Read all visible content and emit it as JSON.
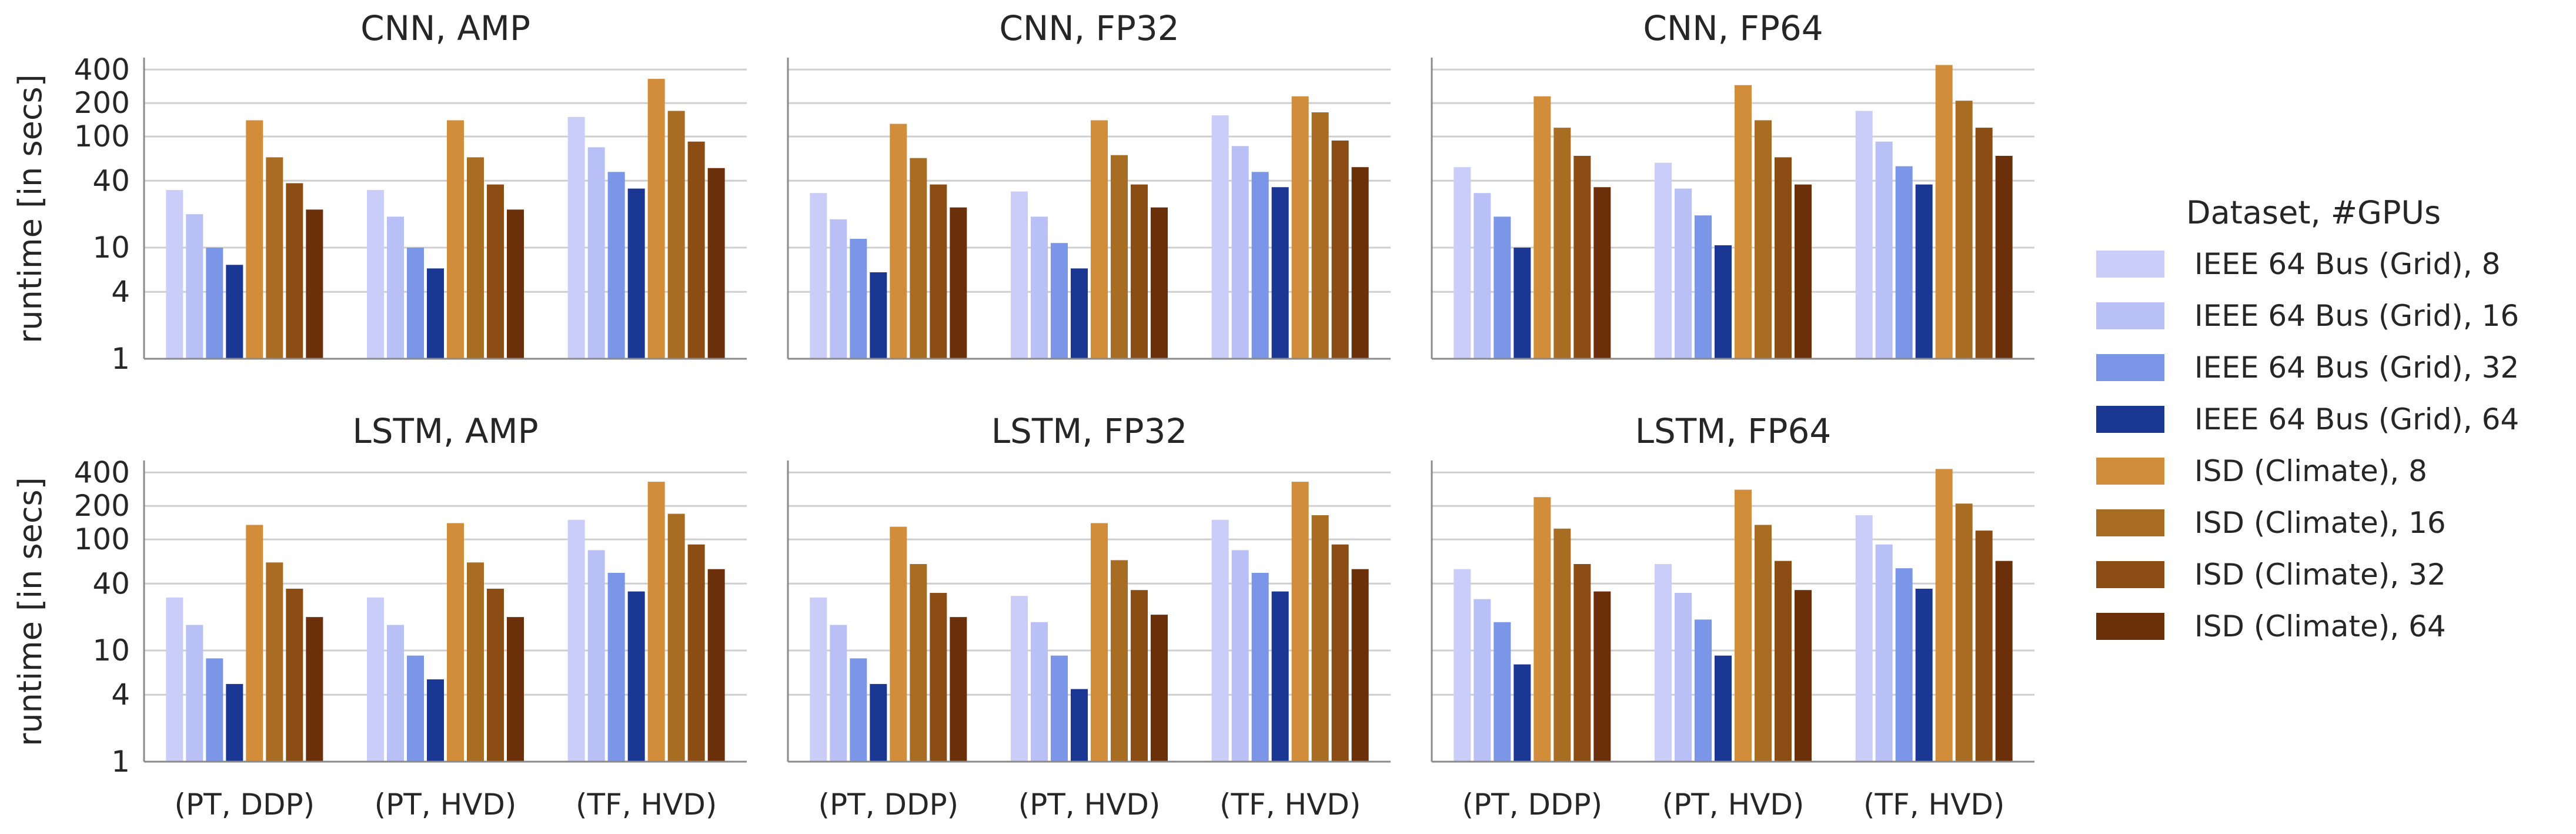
{
  "chart_data": {
    "type": "bar",
    "yscale": "log",
    "ylabel": "runtime [in secs]",
    "ylim": [
      1,
      500
    ],
    "yticks": [
      1,
      4,
      10,
      40,
      100,
      200,
      400
    ],
    "ytick_labels": [
      "1",
      "4",
      "10",
      "40",
      "100",
      "200",
      "400"
    ],
    "categories": [
      "(PT, DDP)",
      "(PT, HVD)",
      "(TF, HVD)"
    ],
    "grid": "horizontal",
    "legend": {
      "title": "Dataset, #GPUs",
      "placement": "right",
      "entries": [
        "IEEE 64 Bus (Grid), 8",
        "IEEE 64 Bus (Grid), 16",
        "IEEE 64 Bus (Grid), 32",
        "IEEE 64 Bus (Grid), 64",
        "ISD (Climate), 8",
        "ISD (Climate), 16",
        "ISD (Climate), 32",
        "ISD (Climate), 64"
      ]
    },
    "series_colors": [
      "#c9cdf7",
      "#b9c0f5",
      "#7b96e7",
      "#1a3794",
      "#d18d3a",
      "#a96c23",
      "#8c4d14",
      "#6b2f0a"
    ],
    "panels": [
      {
        "title": "CNN, AMP",
        "values": [
          [
            33,
            20,
            10,
            7,
            140,
            65,
            38,
            22
          ],
          [
            33,
            19,
            10,
            6.5,
            140,
            65,
            37,
            22
          ],
          [
            150,
            80,
            48,
            34,
            330,
            170,
            90,
            52
          ]
        ]
      },
      {
        "title": "CNN, FP32",
        "values": [
          [
            31,
            18,
            12,
            6,
            130,
            64,
            37,
            23
          ],
          [
            32,
            19,
            11,
            6.5,
            140,
            68,
            37,
            23
          ],
          [
            155,
            82,
            48,
            35,
            230,
            165,
            92,
            53
          ]
        ]
      },
      {
        "title": "CNN, FP64",
        "values": [
          [
            53,
            31,
            19,
            10,
            230,
            120,
            67,
            35
          ],
          [
            58,
            34,
            19.5,
            10.5,
            290,
            140,
            65,
            37
          ],
          [
            170,
            90,
            54,
            37,
            440,
            210,
            120,
            67
          ]
        ]
      },
      {
        "title": "LSTM, AMP",
        "values": [
          [
            30,
            17,
            8.5,
            5,
            135,
            62,
            36,
            20
          ],
          [
            30,
            17,
            9,
            5.5,
            140,
            62,
            36,
            20
          ],
          [
            150,
            80,
            50,
            34,
            330,
            170,
            90,
            54
          ]
        ]
      },
      {
        "title": "LSTM, FP32",
        "values": [
          [
            30,
            17,
            8.5,
            5,
            130,
            60,
            33,
            20
          ],
          [
            31,
            18,
            9,
            4.5,
            140,
            65,
            35,
            21
          ],
          [
            150,
            80,
            50,
            34,
            330,
            165,
            90,
            54
          ]
        ]
      },
      {
        "title": "LSTM, FP64",
        "values": [
          [
            54,
            29,
            18,
            7.5,
            240,
            125,
            60,
            34
          ],
          [
            60,
            33,
            19,
            9,
            280,
            135,
            64,
            35
          ],
          [
            165,
            90,
            55,
            36,
            430,
            210,
            120,
            64
          ]
        ]
      }
    ]
  }
}
